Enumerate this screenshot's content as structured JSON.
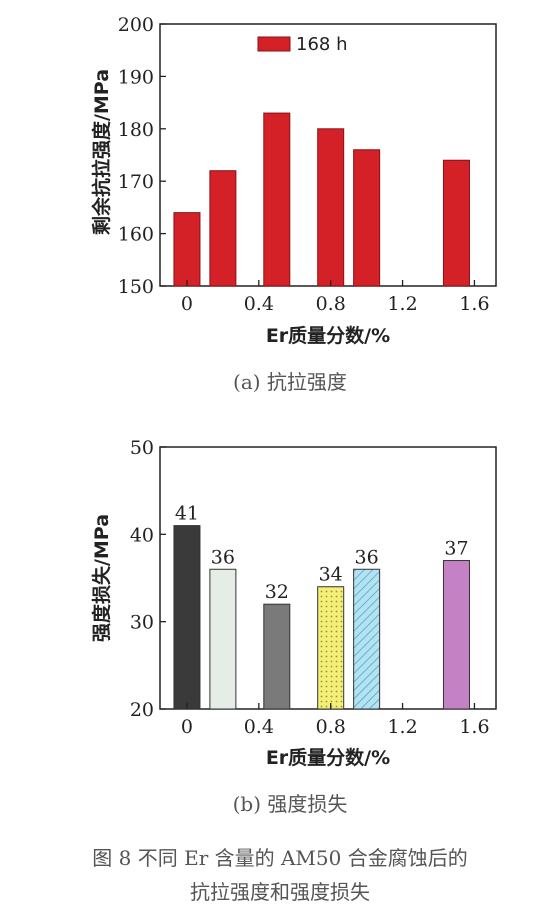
{
  "chart_data": [
    {
      "type": "bar",
      "xlabel": "Er质量分数/%",
      "ylabel": "剩余抗拉强度/MPa",
      "xticks": [
        "0",
        "0.4",
        "0.8",
        "1.2",
        "1.6"
      ],
      "xtick_values": [
        0,
        0.4,
        0.8,
        1.2,
        1.6
      ],
      "xlim": [
        -0.15,
        1.72
      ],
      "ylim": [
        150,
        200
      ],
      "yticks": [
        150,
        160,
        170,
        180,
        190,
        200
      ],
      "x": [
        0,
        0.2,
        0.5,
        0.8,
        1.0,
        1.5
      ],
      "values": [
        164,
        172,
        183,
        180,
        176,
        174
      ],
      "series": [
        {
          "name": "168 h",
          "values": [
            164,
            172,
            183,
            180,
            176,
            174
          ],
          "color": "#d42027"
        }
      ],
      "legend": "top-center",
      "grid": false,
      "subcaption": "(a)  抗拉强度"
    },
    {
      "type": "bar",
      "xlabel": "Er质量分数/%",
      "ylabel": "强度损失/MPa",
      "xticks": [
        "0",
        "0.4",
        "0.8",
        "1.2",
        "1.6"
      ],
      "xtick_values": [
        0,
        0.4,
        0.8,
        1.2,
        1.6
      ],
      "xlim": [
        -0.15,
        1.72
      ],
      "ylim": [
        20,
        50
      ],
      "yticks": [
        20,
        30,
        40,
        50
      ],
      "x": [
        0,
        0.2,
        0.5,
        0.8,
        1.0,
        1.5
      ],
      "values": [
        41,
        36,
        32,
        34,
        36,
        37
      ],
      "data_labels": [
        "41",
        "36",
        "32",
        "34",
        "36",
        "37"
      ],
      "bar_colors": [
        "#3a3a3a",
        "#e6ece6",
        "#7a7a7a",
        "#eeea6a",
        "#aadcec",
        "#c482c4"
      ],
      "bar_patterns": [
        "solid",
        "solid",
        "solid",
        "dots",
        "hatch",
        "solid"
      ],
      "grid": false,
      "subcaption": "(b)  强度损失"
    }
  ],
  "figure_caption": {
    "line1": "图 8  不同 Er 含量的 AM50 合金腐蚀后的",
    "line2": "抗拉强度和强度损失"
  }
}
